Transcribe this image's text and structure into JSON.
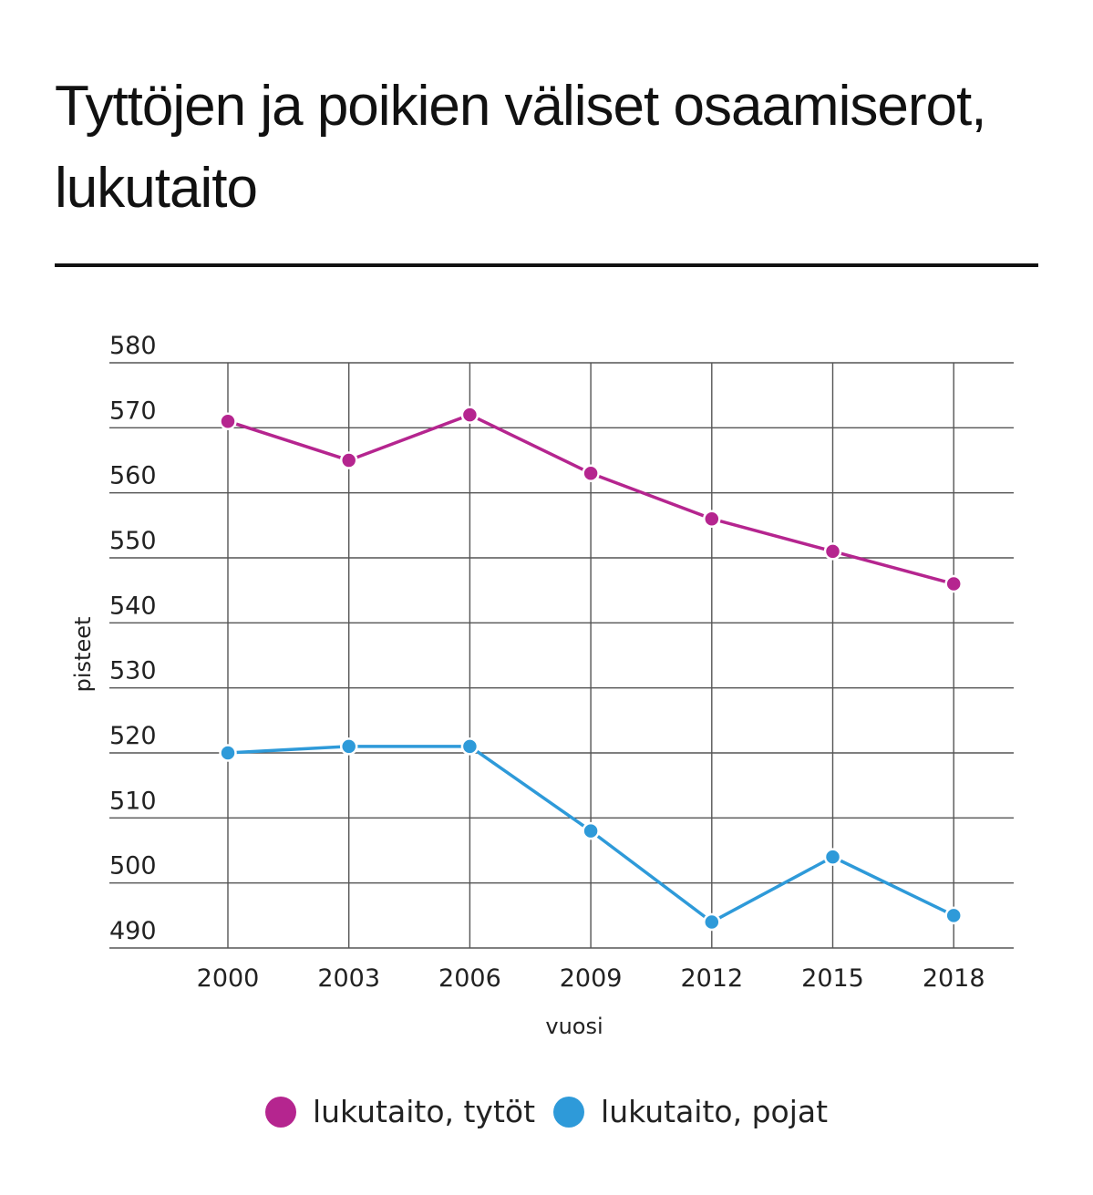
{
  "header": {
    "title": "Tyttöjen ja poikien väliset osaamiserot, lukutaito"
  },
  "chart_data": {
    "type": "line",
    "x": [
      "2000",
      "2003",
      "2006",
      "2009",
      "2012",
      "2015",
      "2018"
    ],
    "xlabel": "vuosi",
    "ylabel": "pisteet",
    "ylim": [
      490,
      580
    ],
    "yticks": [
      580,
      570,
      560,
      550,
      540,
      530,
      520,
      510,
      500,
      490
    ],
    "grid": true,
    "legend_position": "bottom-center",
    "series": [
      {
        "name": "lukutaito, tytöt",
        "color": "#b5258f",
        "values": [
          571,
          565,
          572,
          563,
          556,
          551,
          546
        ]
      },
      {
        "name": "lukutaito, pojat",
        "color": "#2e9ad9",
        "values": [
          520,
          521,
          521,
          508,
          494,
          504,
          495
        ]
      }
    ]
  }
}
